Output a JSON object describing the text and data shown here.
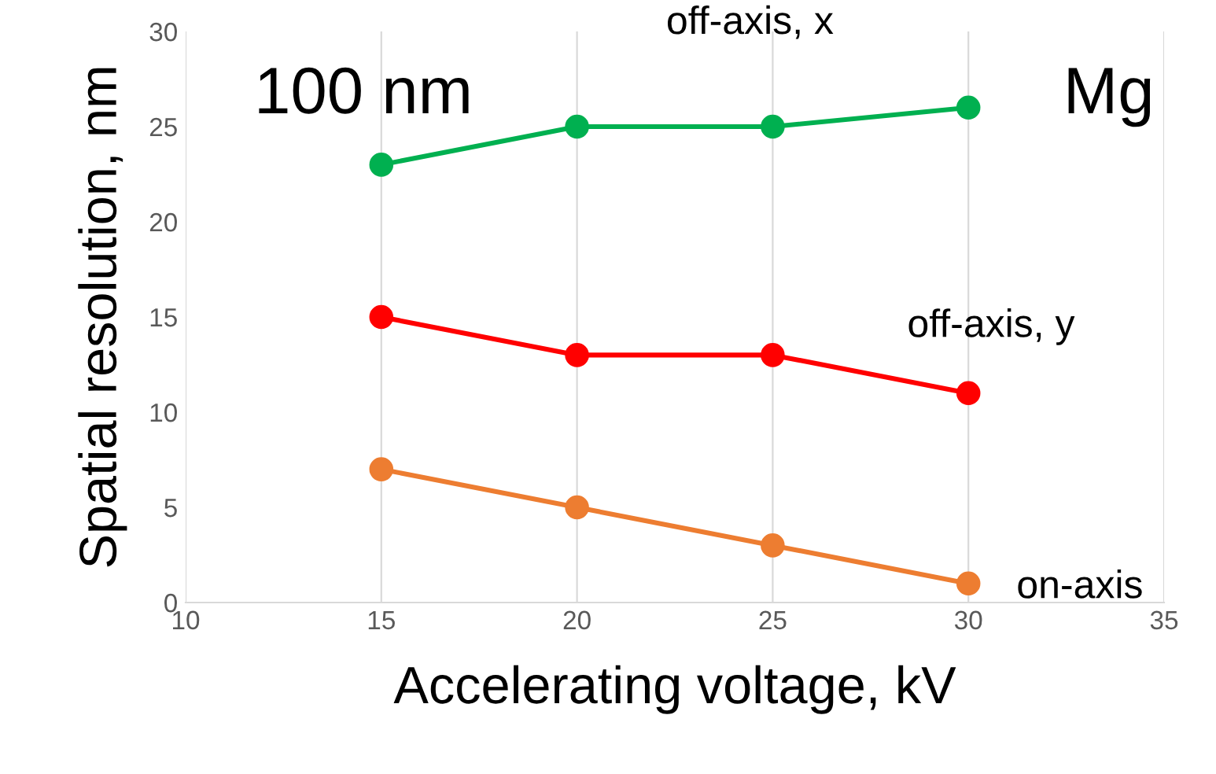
{
  "chart_data": {
    "type": "line",
    "xlabel": "Accelerating voltage, kV",
    "ylabel": "Spatial resolution, nm",
    "x": [
      15,
      20,
      25,
      30
    ],
    "series": [
      {
        "name": "off-axis, x",
        "color": "#00b050",
        "values": [
          23,
          25,
          25,
          26
        ]
      },
      {
        "name": "off-axis, y",
        "color": "#ff0000",
        "values": [
          15,
          13,
          13,
          11
        ]
      },
      {
        "name": "on-axis",
        "color": "#ed7d31",
        "values": [
          7,
          5,
          3,
          1
        ]
      }
    ],
    "xlim": [
      10,
      35
    ],
    "xticks": [
      10,
      15,
      20,
      25,
      30,
      35
    ],
    "ylim": [
      0,
      30
    ],
    "yticks": [
      0,
      5,
      10,
      15,
      20,
      25,
      30
    ],
    "grid": "x",
    "legend": false,
    "marker": "circle",
    "line_style": "solid",
    "annotations": [
      "100 nm",
      "Mg"
    ]
  }
}
